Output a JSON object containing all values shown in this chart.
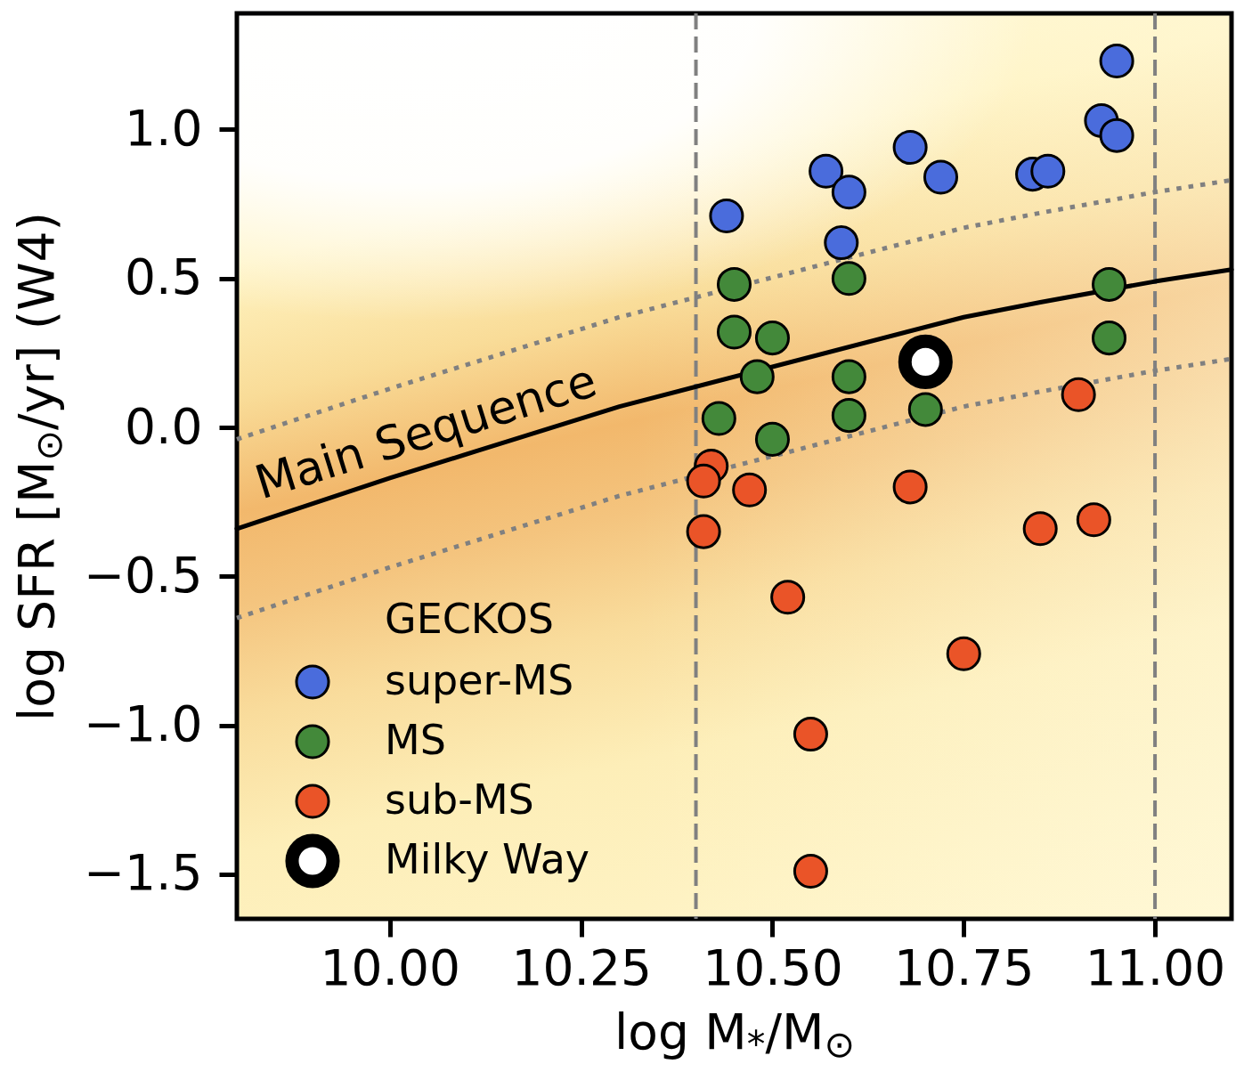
{
  "chart_data": {
    "type": "scatter",
    "xlabel": "log M$_{*}$/M$_{⊙}$",
    "ylabel": "log SFR [M$_{⊙}$/yr] (W4)",
    "legend_title": "GECKOS",
    "legend": "bottom left",
    "grid": false,
    "xlim": [
      9.8,
      11.1
    ],
    "xticks": [
      {
        "value": 10,
        "label": "10.00"
      },
      {
        "value": 10.25,
        "label": "10.25"
      },
      {
        "value": 10.5,
        "label": "10.50"
      },
      {
        "value": 10.75,
        "label": "10.75"
      },
      {
        "value": 11,
        "label": "11.00"
      }
    ],
    "ylim": [
      -1.65,
      1.39
    ],
    "yticks": [
      {
        "value": -1.5,
        "label": "−1.5"
      },
      {
        "value": -1,
        "label": "−1.0"
      },
      {
        "value": -0.5,
        "label": "−0.5"
      },
      {
        "value": 0,
        "label": "0.0"
      },
      0.5,
      {
        "value": 1,
        "label": "1.0"
      }
    ],
    "ref_lines": [
      {
        "axis": "x",
        "value": 10.4,
        "color": "#808080",
        "line_style": "dashed"
      },
      {
        "axis": "x",
        "value": 11,
        "color": "#808080",
        "line_style": "dashed"
      }
    ],
    "series": [
      {
        "type": "line",
        "color": "#808080",
        "line_style": "dotted",
        "x": [
          9.8,
          10.0,
          10.2,
          10.3,
          10.75,
          10.85,
          11.0,
          11.1
        ],
        "values": [
          -0.04,
          0.13,
          0.29,
          0.37,
          0.67,
          0.72,
          0.79,
          0.83
        ]
      },
      {
        "type": "line",
        "color": "#808080",
        "line_style": "dotted",
        "x": [
          9.8,
          10.0,
          10.2,
          10.3,
          10.75,
          10.85,
          11.0,
          11.1
        ],
        "values": [
          -0.64,
          -0.47,
          -0.31,
          -0.23,
          0.07,
          0.12,
          0.19,
          0.23
        ]
      },
      {
        "name": "Main Sequence",
        "type": "line",
        "color": "#000000",
        "line_style": "solid",
        "x": [
          9.8,
          10.0,
          10.2,
          10.3,
          10.75,
          10.85,
          11.0,
          11.1
        ],
        "values": [
          -0.34,
          -0.17,
          -0.01,
          0.07,
          0.37,
          0.42,
          0.49,
          0.53
        ]
      },
      {
        "name": "super-MS",
        "type": "scatter",
        "marker": "circle",
        "color": "#4a6cdc",
        "x": [
          10.44,
          10.57,
          10.6,
          10.59,
          10.68,
          10.72,
          10.84,
          10.86,
          10.93,
          10.95,
          10.95
        ],
        "values": [
          0.71,
          0.86,
          0.79,
          0.62,
          0.94,
          0.84,
          0.85,
          0.86,
          1.03,
          0.98,
          1.23
        ]
      },
      {
        "name": "MS",
        "type": "scatter",
        "marker": "circle",
        "color": "#43893a",
        "x": [
          10.45,
          10.45,
          10.5,
          10.48,
          10.43,
          10.5,
          10.6,
          10.6,
          10.6,
          10.7,
          10.94,
          10.94
        ],
        "values": [
          0.48,
          0.32,
          0.3,
          0.17,
          0.03,
          -0.04,
          0.5,
          0.17,
          0.04,
          0.06,
          0.48,
          0.3
        ]
      },
      {
        "name": "sub-MS",
        "type": "scatter",
        "marker": "circle",
        "color": "#ea5428",
        "x": [
          10.42,
          10.41,
          10.41,
          10.47,
          10.68,
          10.85,
          10.92,
          10.52,
          10.75,
          10.55,
          10.55,
          10.9
        ],
        "values": [
          -0.13,
          -0.18,
          -0.35,
          -0.21,
          -0.2,
          -0.34,
          -0.31,
          -0.57,
          -0.76,
          -1.03,
          -1.49,
          0.11
        ]
      },
      {
        "name": "Milky Way",
        "type": "scatter",
        "marker": "circle",
        "color": "#ffffff",
        "x": [
          10.7
        ],
        "values": [
          0.22
        ]
      }
    ]
  }
}
